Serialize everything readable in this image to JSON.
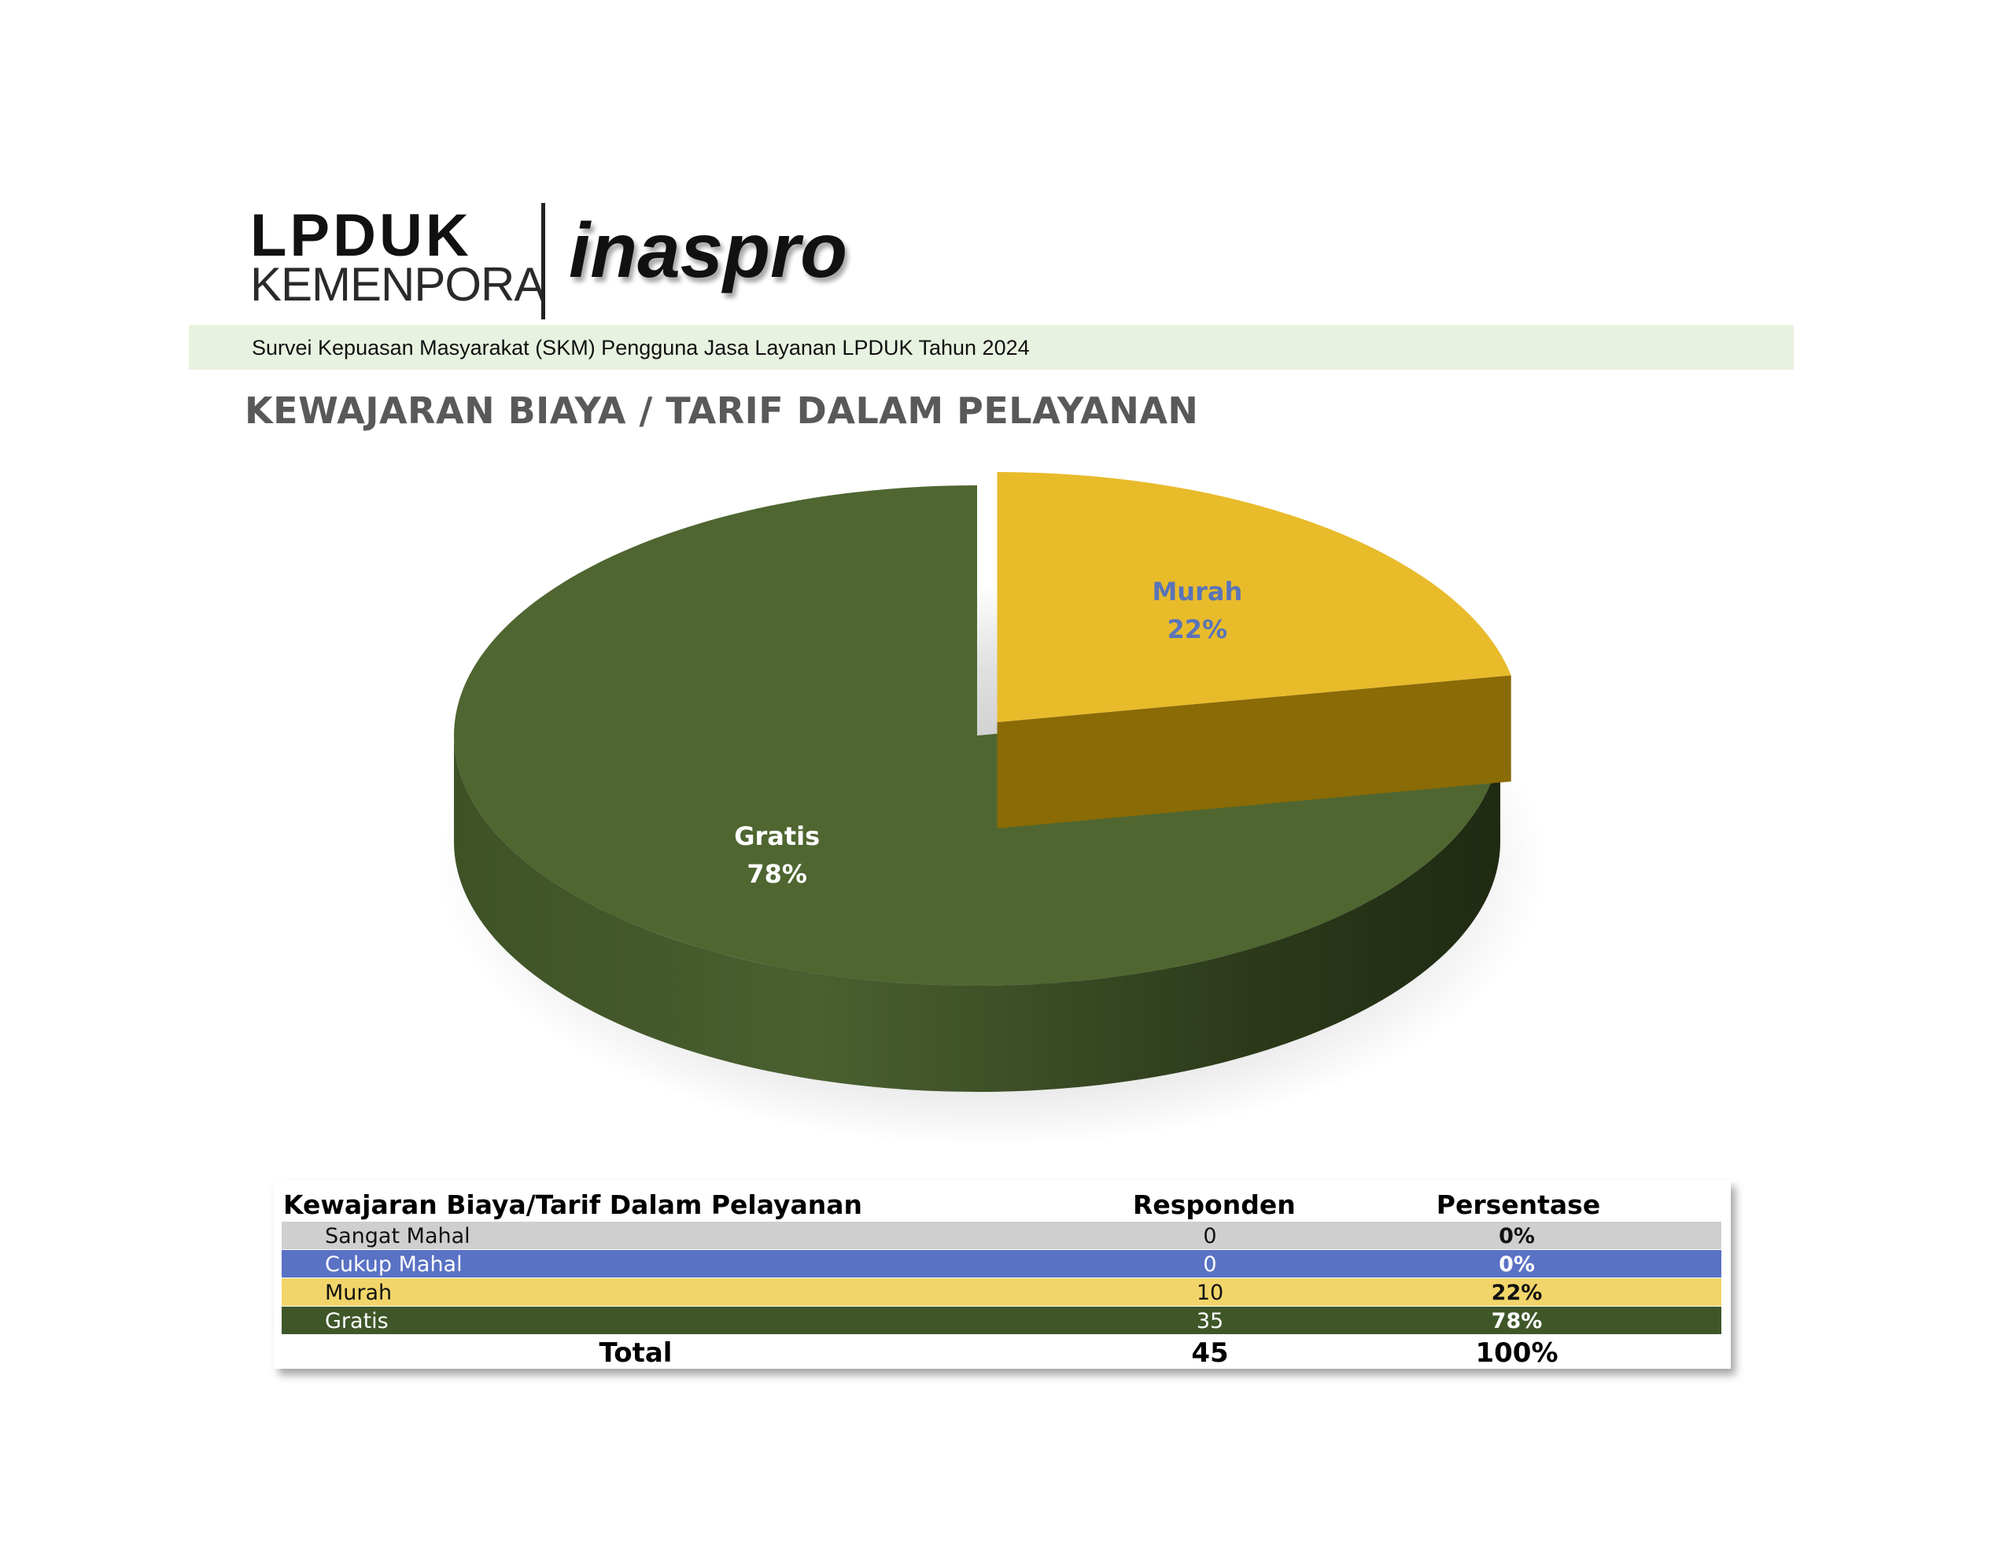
{
  "header": {
    "logo_lpduk": "LPDUK",
    "logo_kemenpora": "KEMENPORA",
    "logo_inaspro": "inaspro",
    "banner": "Survei Kepuasan Masyarakat (SKM) Pengguna Jasa Layanan LPDUK Tahun 2024"
  },
  "page_title": "KEWAJARAN BIAYA / TARIF DALAM PELAYANAN",
  "chart_data": {
    "type": "pie",
    "style": "3d-exploded",
    "slices": [
      {
        "label": "Murah",
        "value": 22,
        "display": "22%",
        "color": "#e8bb2b",
        "side_color": "#8a6b06",
        "label_color": "#5a74b8",
        "exploded": true
      },
      {
        "label": "Gratis",
        "value": 78,
        "display": "78%",
        "color": "#4f6631",
        "side_color": "#2f3e1c",
        "label_color": "#ffffff",
        "exploded": false
      }
    ]
  },
  "table": {
    "headers": [
      "Kewajaran Biaya/Tarif Dalam Pelayanan",
      "Responden",
      "Persentase"
    ],
    "rows": [
      {
        "category": "Sangat Mahal",
        "respondents": "0",
        "percent": "0%",
        "bg": "#cfcfd0",
        "color": "#111111"
      },
      {
        "category": "Cukup Mahal",
        "respondents": "0",
        "percent": "0%",
        "bg": "#5a72c4",
        "color": "#ffffff"
      },
      {
        "category": "Murah",
        "respondents": "10",
        "percent": "22%",
        "bg": "#f2d56a",
        "color": "#111111"
      },
      {
        "category": "Gratis",
        "respondents": "35",
        "percent": "78%",
        "bg": "#3f5728",
        "color": "#ffffff"
      }
    ],
    "total": {
      "label": "Total",
      "respondents": "45",
      "percent": "100%"
    }
  }
}
